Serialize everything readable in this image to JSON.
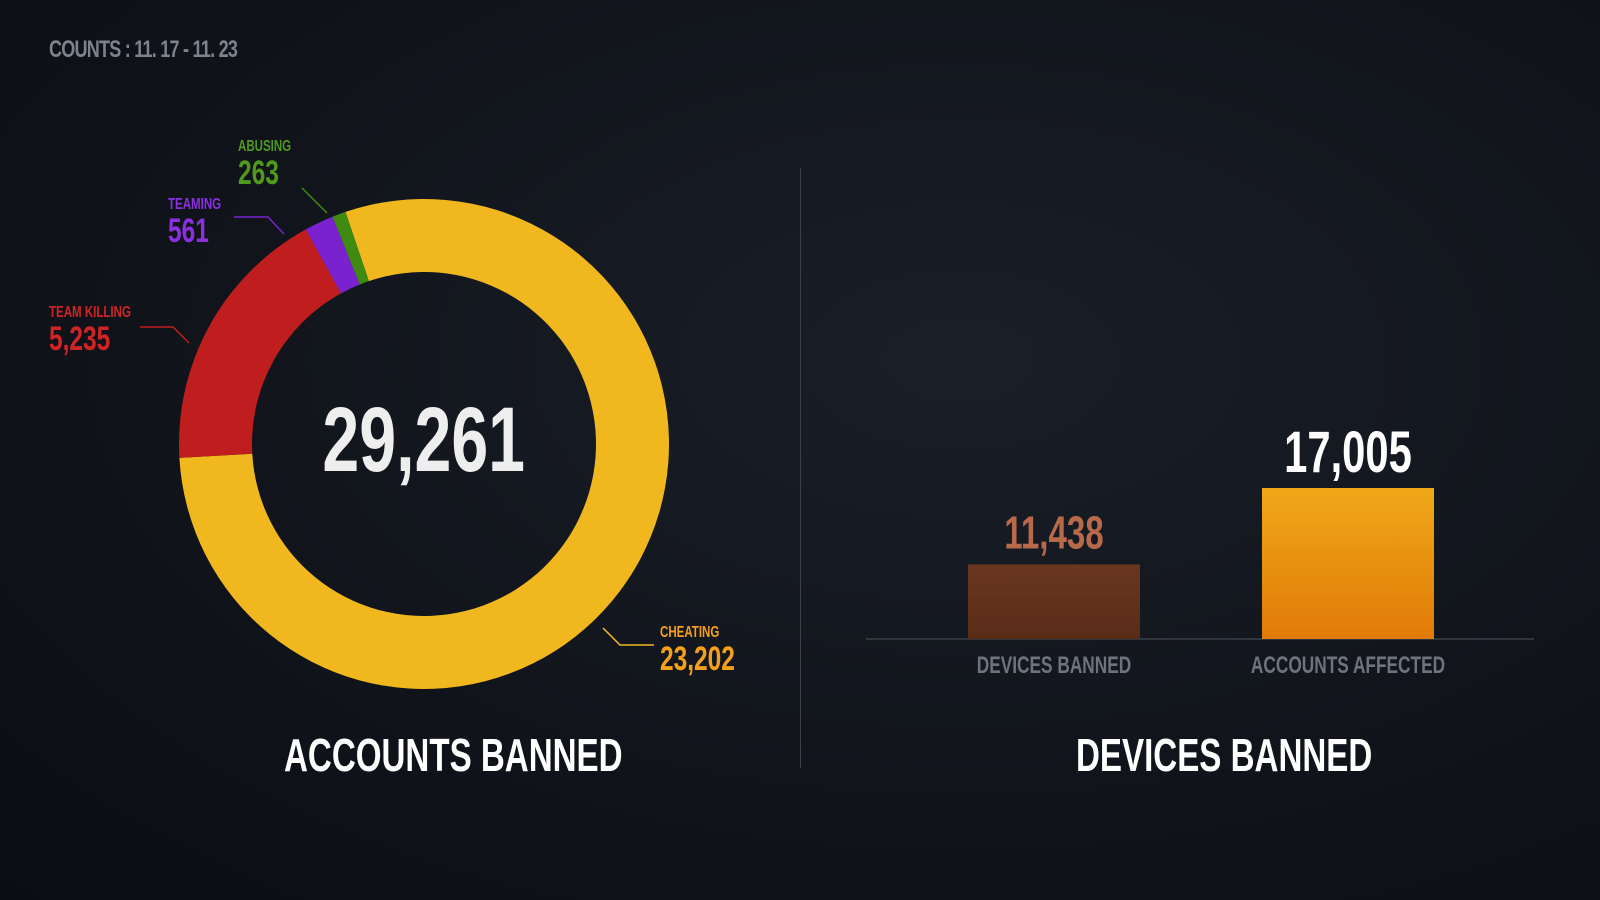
{
  "header": {
    "date_range": "COUNTS : 11. 17 - 11. 23"
  },
  "chart_data": [
    {
      "type": "pie",
      "title": "ACCOUNTS BANNED",
      "total": "29,261",
      "slices": [
        {
          "name": "CHEATING",
          "value": 23202,
          "label": "23,202",
          "color": "#f0b81e"
        },
        {
          "name": "TEAM KILLING",
          "value": 5235,
          "label": "5,235",
          "color": "#c01e1e"
        },
        {
          "name": "TEAMING",
          "value": 561,
          "label": "561",
          "color": "#7a22d0"
        },
        {
          "name": "ABUSING",
          "value": 263,
          "label": "263",
          "color": "#3f8a10"
        }
      ]
    },
    {
      "type": "bar",
      "title": "DEVICES BANNED",
      "categories": [
        "DEVICES BANNED",
        "ACCOUNTS AFFECTED"
      ],
      "values": [
        11438,
        17005
      ],
      "labels": [
        "11,438",
        "17,005"
      ],
      "colors": [
        "#6a3620",
        "#f0a818"
      ],
      "label_colors": [
        "#b8694a",
        "#ffffff"
      ],
      "ylim": [
        6000,
        17005
      ]
    }
  ]
}
